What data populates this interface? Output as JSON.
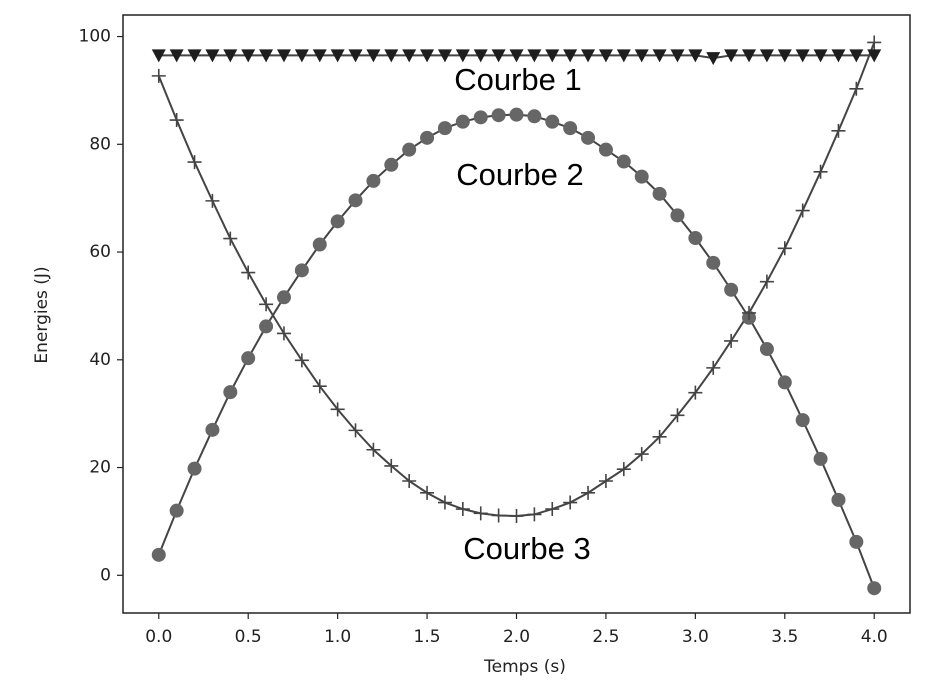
{
  "chart_data": {
    "type": "line",
    "xlabel": "Temps (s)",
    "ylabel": "Energies (J)",
    "annotations": [
      "Courbe 1",
      "Courbe 2",
      "Courbe 3"
    ],
    "x": [
      0,
      0.1,
      0.2,
      0.3,
      0.4,
      0.5,
      0.6,
      0.7,
      0.8,
      0.9,
      1.0,
      1.1,
      1.2,
      1.3,
      1.4,
      1.5,
      1.6,
      1.7,
      1.8,
      1.9,
      2.0,
      2.1,
      2.2,
      2.3,
      2.4,
      2.5,
      2.6,
      2.7,
      2.8,
      2.9,
      3.0,
      3.1,
      3.2,
      3.3,
      3.4,
      3.5,
      3.6,
      3.7,
      3.8,
      3.9,
      4.0
    ],
    "series": [
      {
        "marker": "triangle",
        "color": "#1e1e1e",
        "values": [
          96.5,
          96.5,
          96.5,
          96.5,
          96.5,
          96.5,
          96.5,
          96.5,
          96.5,
          96.5,
          96.5,
          96.5,
          96.5,
          96.5,
          96.5,
          96.5,
          96.5,
          96.5,
          96.5,
          96.5,
          96.5,
          96.5,
          96.5,
          96.5,
          96.5,
          96.5,
          96.5,
          96.5,
          96.5,
          96.5,
          96.5,
          96,
          96.5,
          96.5,
          96.5,
          96.5,
          96.5,
          96.5,
          96.5,
          96.5,
          96.5
        ]
      },
      {
        "marker": "circle",
        "color": "#666666",
        "values": [
          3.8,
          12,
          19.8,
          27,
          34,
          40.3,
          46.2,
          51.6,
          56.6,
          61.4,
          65.7,
          69.6,
          73.2,
          76.2,
          79,
          81.2,
          83,
          84.2,
          85,
          85.4,
          85.5,
          85.2,
          84.2,
          83,
          81.2,
          79,
          76.8,
          74,
          70.8,
          66.8,
          62.6,
          58,
          53,
          47.8,
          42,
          35.8,
          28.8,
          21.6,
          14,
          6.2,
          -2.4
        ]
      },
      {
        "marker": "plus",
        "color": "#444444",
        "values": [
          92.7,
          84.5,
          76.7,
          69.5,
          62.5,
          56.2,
          50.3,
          44.9,
          39.9,
          35.1,
          30.8,
          26.9,
          23.3,
          20.3,
          17.5,
          15.3,
          13.5,
          12.3,
          11.5,
          11.1,
          11,
          11.3,
          12.3,
          13.5,
          15.3,
          17.5,
          19.7,
          22.5,
          25.7,
          29.7,
          33.9,
          38.5,
          43.5,
          48.7,
          54.5,
          60.7,
          67.7,
          74.9,
          82.5,
          90.3,
          98.9
        ]
      }
    ],
    "xlim": [
      -0.2,
      4.2
    ],
    "ylim": [
      -7,
      104
    ],
    "xticks": [
      {
        "value": 0,
        "label": "0.0"
      },
      {
        "value": 0.5,
        "label": "0.5"
      },
      {
        "value": 1,
        "label": "1.0"
      },
      {
        "value": 1.5,
        "label": "1.5"
      },
      {
        "value": 2,
        "label": "2.0"
      },
      {
        "value": 2.5,
        "label": "2.5"
      },
      {
        "value": 3,
        "label": "3.0"
      },
      {
        "value": 3.5,
        "label": "3.5"
      },
      {
        "value": 4,
        "label": "4.0"
      }
    ],
    "yticks": [
      0,
      20,
      40,
      60,
      80,
      100
    ],
    "line_color": "#444444"
  }
}
